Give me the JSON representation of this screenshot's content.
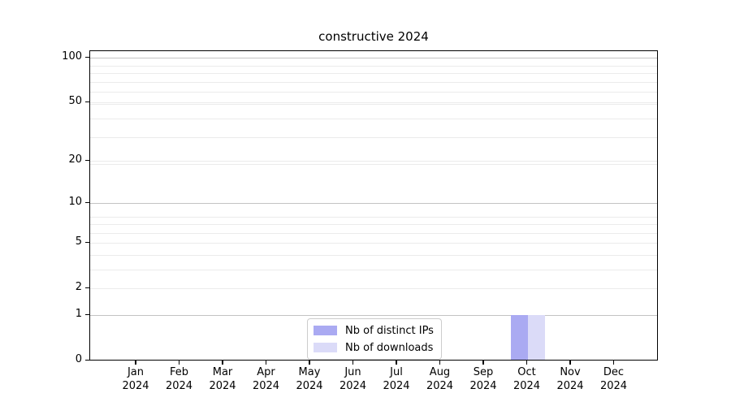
{
  "chart_data": {
    "type": "bar",
    "title": "constructive 2024",
    "categories": [
      "Jan 2024",
      "Feb 2024",
      "Mar 2024",
      "Apr 2024",
      "May 2024",
      "Jun 2024",
      "Jul 2024",
      "Aug 2024",
      "Sep 2024",
      "Oct 2024",
      "Nov 2024",
      "Dec 2024"
    ],
    "series": [
      {
        "name": "Nb of distinct IPs",
        "color": "#aaaaf2",
        "values": [
          0,
          0,
          0,
          0,
          0,
          0,
          0,
          0,
          0,
          1,
          0,
          0
        ]
      },
      {
        "name": "Nb of downloads",
        "color": "#dbdbf8",
        "values": [
          0,
          0,
          0,
          0,
          0,
          0,
          0,
          0,
          0,
          1,
          0,
          0
        ]
      }
    ],
    "xlabel": "",
    "ylabel": "",
    "yscale": "log1p",
    "ylim": [
      0,
      111
    ],
    "y_ticks": [
      0,
      1,
      2,
      5,
      10,
      20,
      50,
      100
    ],
    "y_gridlines_major": [
      1,
      10,
      100
    ],
    "y_gridlines_minor": [
      2,
      3,
      4,
      5,
      6,
      7,
      8,
      19,
      20,
      29,
      39,
      49,
      50,
      59,
      69,
      79,
      89
    ],
    "grid": true,
    "legend_position": "lower center",
    "colors": {
      "major_grid": "#c3c3c3",
      "minor_grid": "#ebebeb",
      "axis": "#000000",
      "text": "#000000"
    }
  }
}
